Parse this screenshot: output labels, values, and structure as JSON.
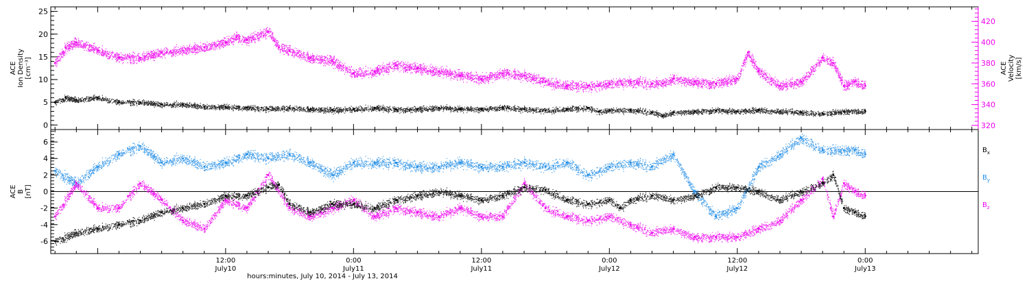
{
  "chart_data": {
    "type": "scatter",
    "x_label": "hours:minutes, July 10, 2014 - July 13, 2014",
    "x_range_hours": [
      -4.4,
      82.6
    ],
    "x_ticks": [
      {
        "hours": 12,
        "time": "12:00",
        "date": "July10"
      },
      {
        "hours": 24,
        "time": "0:00",
        "date": "July11"
      },
      {
        "hours": 36,
        "time": "12:00",
        "date": "July11"
      },
      {
        "hours": 48,
        "time": "0:00",
        "date": "July12"
      },
      {
        "hours": 60,
        "time": "12:00",
        "date": "July12"
      },
      {
        "hours": 72,
        "time": "0:00",
        "date": "July13"
      }
    ],
    "panels": [
      {
        "id": "density-velocity",
        "y_left": {
          "label_lines": [
            "ACE",
            "Ion Density",
            "[cm⁻³]"
          ],
          "range": [
            -1,
            26
          ],
          "ticks": [
            0,
            5,
            10,
            15,
            20,
            25
          ],
          "color": "#000000"
        },
        "y_right": {
          "label_lines": [
            "ACE",
            "Velocity",
            "[km/s]"
          ],
          "range": [
            316,
            434
          ],
          "ticks": [
            320,
            340,
            360,
            380,
            400,
            420
          ],
          "color": "#ee00ee"
        },
        "series": [
          {
            "axis": "left",
            "color": "#000000",
            "points": [
              [
                -4,
                5
              ],
              [
                -3,
                6
              ],
              [
                -2,
                5.5
              ],
              [
                0,
                6
              ],
              [
                2,
                5
              ],
              [
                4,
                5
              ],
              [
                6,
                4.5
              ],
              [
                8,
                4.5
              ],
              [
                10,
                4
              ],
              [
                12,
                4
              ],
              [
                14,
                3.8
              ],
              [
                16,
                3.5
              ],
              [
                18,
                3.7
              ],
              [
                20,
                3.5
              ],
              [
                22,
                3.3
              ],
              [
                24,
                3.5
              ],
              [
                26,
                3.8
              ],
              [
                28,
                3.4
              ],
              [
                30,
                3.5
              ],
              [
                32,
                3.8
              ],
              [
                34,
                3.5
              ],
              [
                36,
                3.5
              ],
              [
                38,
                3.8
              ],
              [
                40,
                3.5
              ],
              [
                42,
                3.2
              ],
              [
                44,
                3.5
              ],
              [
                46,
                3.8
              ],
              [
                47,
                3
              ],
              [
                48,
                3.2
              ],
              [
                50,
                3.3
              ],
              [
                52,
                2.8
              ],
              [
                53,
                2
              ],
              [
                54,
                2.8
              ],
              [
                56,
                3
              ],
              [
                58,
                3.2
              ],
              [
                60,
                3
              ],
              [
                62,
                3.3
              ],
              [
                64,
                3
              ],
              [
                66,
                2.8
              ],
              [
                68,
                2.5
              ],
              [
                70,
                3
              ],
              [
                72,
                3
              ]
            ]
          },
          {
            "axis": "right",
            "color": "#ee00ee",
            "points": [
              [
                -4,
                380
              ],
              [
                -3,
                395
              ],
              [
                -2,
                400
              ],
              [
                0,
                392
              ],
              [
                2,
                385
              ],
              [
                4,
                385
              ],
              [
                6,
                390
              ],
              [
                8,
                392
              ],
              [
                10,
                395
              ],
              [
                12,
                400
              ],
              [
                13,
                405
              ],
              [
                14,
                402
              ],
              [
                16,
                410
              ],
              [
                17,
                395
              ],
              [
                18,
                392
              ],
              [
                20,
                385
              ],
              [
                22,
                382
              ],
              [
                24,
                370
              ],
              [
                26,
                372
              ],
              [
                28,
                378
              ],
              [
                30,
                375
              ],
              [
                32,
                372
              ],
              [
                34,
                368
              ],
              [
                36,
                365
              ],
              [
                38,
                370
              ],
              [
                40,
                368
              ],
              [
                42,
                362
              ],
              [
                44,
                358
              ],
              [
                46,
                358
              ],
              [
                48,
                360
              ],
              [
                50,
                362
              ],
              [
                52,
                360
              ],
              [
                53,
                360
              ],
              [
                54,
                365
              ],
              [
                56,
                362
              ],
              [
                58,
                360
              ],
              [
                60,
                365
              ],
              [
                61,
                390
              ],
              [
                62,
                372
              ],
              [
                64,
                358
              ],
              [
                66,
                362
              ],
              [
                68,
                385
              ],
              [
                69,
                380
              ],
              [
                70,
                358
              ],
              [
                71,
                362
              ],
              [
                72,
                358
              ]
            ]
          }
        ]
      },
      {
        "id": "magnetic-field",
        "y_left": {
          "label_lines": [
            "ACE",
            "B",
            "[nT]"
          ],
          "range": [
            -7.5,
            7.5
          ],
          "ticks": [
            -6,
            -4,
            -2,
            0,
            2,
            4,
            6
          ],
          "color": "#000000"
        },
        "zero_line": true,
        "legend": [
          {
            "base": "B",
            "sub": "x",
            "color": "#000000"
          },
          {
            "base": "B",
            "sub": "y",
            "color": "#1e8ce6"
          },
          {
            "base": "B",
            "sub": "z",
            "color": "#ee00ee"
          }
        ],
        "series": [
          {
            "name": "Bx",
            "color": "#000000",
            "points": [
              [
                -4,
                -6
              ],
              [
                -2,
                -5
              ],
              [
                0,
                -4.5
              ],
              [
                2,
                -4
              ],
              [
                4,
                -3.5
              ],
              [
                6,
                -2.5
              ],
              [
                8,
                -2
              ],
              [
                10,
                -1.5
              ],
              [
                12,
                -0.5
              ],
              [
                14,
                -0.5
              ],
              [
                16,
                0.5
              ],
              [
                17,
                0.8
              ],
              [
                18,
                -1.5
              ],
              [
                20,
                -2.5
              ],
              [
                22,
                -1.5
              ],
              [
                24,
                -1.5
              ],
              [
                26,
                -2
              ],
              [
                28,
                -1
              ],
              [
                30,
                -0.5
              ],
              [
                32,
                0
              ],
              [
                34,
                -0.5
              ],
              [
                36,
                -1
              ],
              [
                38,
                -0.5
              ],
              [
                40,
                0.5
              ],
              [
                42,
                0.2
              ],
              [
                44,
                -1
              ],
              [
                46,
                -1.5
              ],
              [
                48,
                -1
              ],
              [
                49,
                -2
              ],
              [
                50,
                -1
              ],
              [
                52,
                -0.5
              ],
              [
                54,
                -1
              ],
              [
                56,
                -0.5
              ],
              [
                58,
                0.5
              ],
              [
                60,
                0.5
              ],
              [
                62,
                0
              ],
              [
                64,
                -1
              ],
              [
                66,
                0
              ],
              [
                68,
                1
              ],
              [
                69,
                2
              ],
              [
                70,
                -2
              ],
              [
                71,
                -2.5
              ],
              [
                72,
                -3
              ]
            ]
          },
          {
            "name": "By",
            "color": "#1e8ce6",
            "points": [
              [
                -4,
                2.5
              ],
              [
                -2,
                1
              ],
              [
                0,
                3
              ],
              [
                2,
                4.5
              ],
              [
                4,
                5.5
              ],
              [
                6,
                3.5
              ],
              [
                8,
                4
              ],
              [
                10,
                3
              ],
              [
                12,
                3.5
              ],
              [
                14,
                4.5
              ],
              [
                16,
                4
              ],
              [
                18,
                4.5
              ],
              [
                20,
                3.5
              ],
              [
                22,
                2
              ],
              [
                24,
                3.5
              ],
              [
                26,
                3.5
              ],
              [
                28,
                3.5
              ],
              [
                30,
                3
              ],
              [
                32,
                3
              ],
              [
                34,
                3.5
              ],
              [
                36,
                3
              ],
              [
                38,
                3
              ],
              [
                40,
                3.5
              ],
              [
                42,
                3
              ],
              [
                44,
                3.5
              ],
              [
                46,
                2
              ],
              [
                48,
                3
              ],
              [
                50,
                3.5
              ],
              [
                52,
                3
              ],
              [
                54,
                4.5
              ],
              [
                56,
                0
              ],
              [
                58,
                -3
              ],
              [
                60,
                -2
              ],
              [
                62,
                3
              ],
              [
                64,
                4.5
              ],
              [
                66,
                6.5
              ],
              [
                68,
                5
              ],
              [
                70,
                5
              ],
              [
                71,
                5
              ],
              [
                72,
                4.5
              ]
            ]
          },
          {
            "name": "Bz",
            "color": "#ee00ee",
            "points": [
              [
                -4,
                -3
              ],
              [
                -2,
                1
              ],
              [
                0,
                -2
              ],
              [
                2,
                -2
              ],
              [
                4,
                1
              ],
              [
                6,
                -1
              ],
              [
                8,
                -3.5
              ],
              [
                10,
                -4.5
              ],
              [
                12,
                -1
              ],
              [
                14,
                -2
              ],
              [
                16,
                2
              ],
              [
                18,
                -2
              ],
              [
                20,
                -3
              ],
              [
                22,
                -2
              ],
              [
                24,
                -1
              ],
              [
                26,
                -3
              ],
              [
                28,
                -2
              ],
              [
                30,
                -2.5
              ],
              [
                32,
                -3
              ],
              [
                34,
                -2
              ],
              [
                36,
                -3
              ],
              [
                38,
                -3
              ],
              [
                40,
                1
              ],
              [
                42,
                -2
              ],
              [
                44,
                -3
              ],
              [
                46,
                -3.5
              ],
              [
                48,
                -3
              ],
              [
                50,
                -4
              ],
              [
                52,
                -5
              ],
              [
                54,
                -4.5
              ],
              [
                56,
                -5.5
              ],
              [
                58,
                -5.5
              ],
              [
                60,
                -5.5
              ],
              [
                62,
                -4.5
              ],
              [
                64,
                -3.5
              ],
              [
                66,
                -1
              ],
              [
                68,
                1.5
              ],
              [
                69,
                -3
              ],
              [
                70,
                1
              ],
              [
                71,
                0
              ],
              [
                72,
                -0.5
              ]
            ]
          }
        ]
      }
    ]
  }
}
